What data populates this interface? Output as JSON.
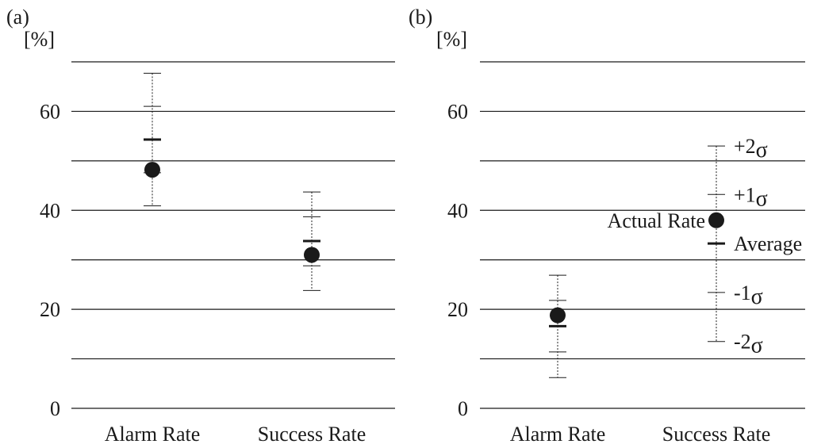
{
  "chart_data": [
    {
      "type": "scatter",
      "panel_label": "(a)",
      "ylabel": "[%]",
      "ylim": [
        0,
        70
      ],
      "yticks": [
        0,
        20,
        40,
        60
      ],
      "gridlines": [
        0,
        10,
        20,
        30,
        40,
        50,
        60,
        70
      ],
      "categories": [
        "Alarm Rate",
        "Success Rate"
      ],
      "series": [
        {
          "actual": 48.2,
          "average": 54.3,
          "plus1": 61.0,
          "plus2": 67.7,
          "minus1": 47.6,
          "minus2": 40.9
        },
        {
          "actual": 31.0,
          "average": 33.8,
          "plus1": 38.7,
          "plus2": 43.7,
          "minus1": 28.8,
          "minus2": 23.8
        }
      ]
    },
    {
      "type": "scatter",
      "panel_label": "(b)",
      "ylabel": "[%]",
      "ylim": [
        0,
        70
      ],
      "yticks": [
        0,
        20,
        40,
        60
      ],
      "gridlines": [
        0,
        10,
        20,
        30,
        40,
        50,
        60,
        70
      ],
      "categories": [
        "Alarm Rate",
        "Success Rate"
      ],
      "series": [
        {
          "actual": 18.8,
          "average": 16.6,
          "plus1": 21.8,
          "plus2": 26.9,
          "minus1": 11.4,
          "minus2": 6.2
        },
        {
          "actual": 38.0,
          "average": 33.3,
          "plus1": 43.2,
          "plus2": 53.0,
          "minus1": 23.4,
          "minus2": 13.5
        }
      ],
      "annotations": {
        "plus2": "+2",
        "plus1": "+1",
        "minus1": "-1",
        "minus2": "-2",
        "sigma": "σ",
        "average": "Average",
        "actual": "Actual Rate"
      }
    }
  ]
}
